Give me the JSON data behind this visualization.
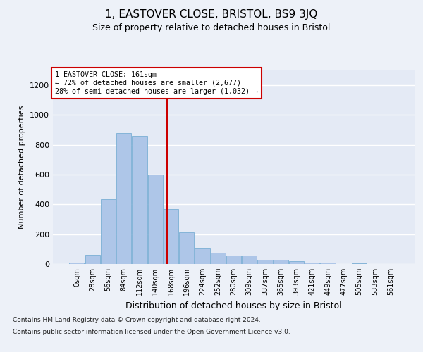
{
  "title_line1": "1, EASTOVER CLOSE, BRISTOL, BS9 3JQ",
  "title_line2": "Size of property relative to detached houses in Bristol",
  "xlabel": "Distribution of detached houses by size in Bristol",
  "ylabel": "Number of detached properties",
  "bin_labels": [
    "0sqm",
    "28sqm",
    "56sqm",
    "84sqm",
    "112sqm",
    "140sqm",
    "168sqm",
    "196sqm",
    "224sqm",
    "252sqm",
    "280sqm",
    "309sqm",
    "337sqm",
    "365sqm",
    "393sqm",
    "421sqm",
    "449sqm",
    "477sqm",
    "505sqm",
    "533sqm",
    "561sqm"
  ],
  "bar_values": [
    10,
    60,
    435,
    880,
    860,
    600,
    370,
    215,
    110,
    75,
    55,
    55,
    30,
    30,
    18,
    10,
    8,
    0,
    3,
    0,
    0
  ],
  "bar_color": "#aec6e8",
  "bar_edgecolor": "#7aafd4",
  "annotation_line1": "1 EASTOVER CLOSE: 161sqm",
  "annotation_line2": "← 72% of detached houses are smaller (2,677)",
  "annotation_line3": "28% of semi-detached houses are larger (1,032) →",
  "vline_color": "#cc0000",
  "ylim": [
    0,
    1300
  ],
  "yticks": [
    0,
    200,
    400,
    600,
    800,
    1000,
    1200
  ],
  "footnote1": "Contains HM Land Registry data © Crown copyright and database right 2024.",
  "footnote2": "Contains public sector information licensed under the Open Government Licence v3.0.",
  "background_color": "#edf1f8",
  "plot_bg_color": "#e4eaf5"
}
